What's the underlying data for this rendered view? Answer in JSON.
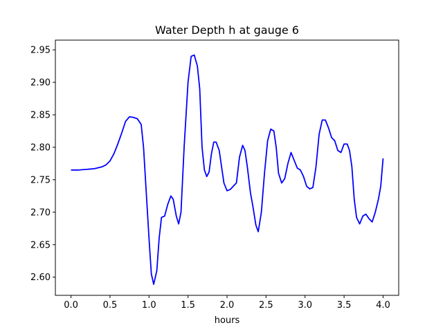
{
  "chart_data": {
    "type": "line",
    "title": "Water Depth h at gauge 6",
    "xlabel": "hours",
    "ylabel": "",
    "xlim": [
      -0.2,
      4.2
    ],
    "ylim": [
      2.572,
      2.965
    ],
    "xticks": [
      0.0,
      0.5,
      1.0,
      1.5,
      2.0,
      2.5,
      3.0,
      3.5,
      4.0
    ],
    "xtick_labels": [
      "0.0",
      "0.5",
      "1.0",
      "1.5",
      "2.0",
      "2.5",
      "3.0",
      "3.5",
      "4.0"
    ],
    "yticks": [
      2.6,
      2.65,
      2.7,
      2.75,
      2.8,
      2.85,
      2.9,
      2.95
    ],
    "ytick_labels": [
      "2.60",
      "2.65",
      "2.70",
      "2.75",
      "2.80",
      "2.85",
      "2.90",
      "2.95"
    ],
    "grid": false,
    "series": [
      {
        "color": "#0000ff",
        "x": [
          0.0,
          0.1,
          0.2,
          0.3,
          0.4,
          0.45,
          0.5,
          0.55,
          0.6,
          0.65,
          0.7,
          0.75,
          0.8,
          0.85,
          0.9,
          0.93,
          0.96,
          1.0,
          1.03,
          1.06,
          1.1,
          1.13,
          1.16,
          1.2,
          1.24,
          1.28,
          1.31,
          1.35,
          1.38,
          1.41,
          1.45,
          1.5,
          1.54,
          1.58,
          1.62,
          1.65,
          1.68,
          1.71,
          1.74,
          1.77,
          1.8,
          1.83,
          1.86,
          1.9,
          1.93,
          1.96,
          2.0,
          2.04,
          2.08,
          2.12,
          2.16,
          2.2,
          2.23,
          2.26,
          2.3,
          2.33,
          2.37,
          2.4,
          2.44,
          2.48,
          2.52,
          2.56,
          2.6,
          2.63,
          2.66,
          2.7,
          2.74,
          2.78,
          2.82,
          2.86,
          2.9,
          2.94,
          2.98,
          3.02,
          3.06,
          3.1,
          3.14,
          3.18,
          3.22,
          3.26,
          3.3,
          3.34,
          3.38,
          3.42,
          3.46,
          3.5,
          3.54,
          3.57,
          3.6,
          3.63,
          3.66,
          3.7,
          3.74,
          3.78,
          3.82,
          3.86,
          3.9,
          3.94,
          3.97,
          4.0
        ],
        "y": [
          2.765,
          2.765,
          2.766,
          2.767,
          2.77,
          2.773,
          2.779,
          2.79,
          2.805,
          2.822,
          2.84,
          2.847,
          2.846,
          2.844,
          2.835,
          2.8,
          2.74,
          2.66,
          2.605,
          2.589,
          2.61,
          2.66,
          2.692,
          2.694,
          2.712,
          2.725,
          2.72,
          2.694,
          2.682,
          2.7,
          2.8,
          2.9,
          2.94,
          2.942,
          2.925,
          2.89,
          2.8,
          2.765,
          2.755,
          2.762,
          2.79,
          2.808,
          2.808,
          2.795,
          2.77,
          2.745,
          2.733,
          2.735,
          2.74,
          2.745,
          2.785,
          2.803,
          2.795,
          2.77,
          2.73,
          2.71,
          2.68,
          2.67,
          2.7,
          2.76,
          2.81,
          2.828,
          2.825,
          2.8,
          2.76,
          2.745,
          2.752,
          2.775,
          2.792,
          2.78,
          2.768,
          2.765,
          2.755,
          2.74,
          2.736,
          2.738,
          2.77,
          2.82,
          2.842,
          2.842,
          2.83,
          2.815,
          2.81,
          2.795,
          2.792,
          2.805,
          2.805,
          2.795,
          2.77,
          2.72,
          2.692,
          2.682,
          2.694,
          2.697,
          2.69,
          2.685,
          2.7,
          2.72,
          2.74,
          2.783
        ]
      }
    ]
  }
}
